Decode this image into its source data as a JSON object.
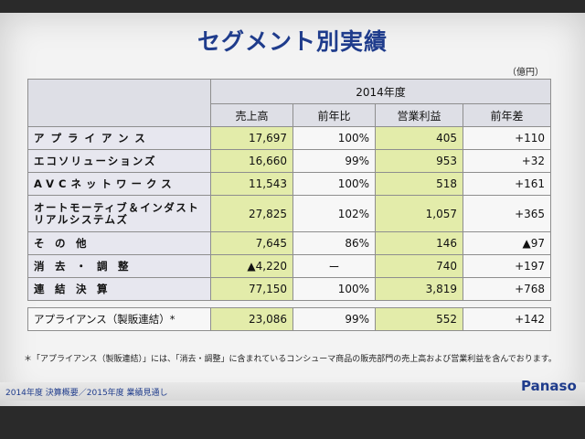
{
  "title": "セグメント別実績",
  "unit": "（億円）",
  "year_header": "2014年度",
  "columns": [
    "売上高",
    "前年比",
    "営業利益",
    "前年差"
  ],
  "rows": [
    {
      "label": "アプライアンス",
      "sales": "17,697",
      "yoy": "100%",
      "op": "405",
      "diff": "+110"
    },
    {
      "label": "エコソリューションズ",
      "sales": "16,660",
      "yoy": "99%",
      "op": "953",
      "diff": "+32"
    },
    {
      "label": "AVCネットワークス",
      "sales": "11,543",
      "yoy": "100%",
      "op": "518",
      "diff": "+161"
    },
    {
      "label": "オートモーティブ＆インダストリアルシステムズ",
      "sales": "27,825",
      "yoy": "102%",
      "op": "1,057",
      "diff": "+365"
    },
    {
      "label": "そ　の　他",
      "sales": "7,645",
      "yoy": "86%",
      "op": "146",
      "diff": "▲97"
    },
    {
      "label": "消　去　・　調　整",
      "sales": "▲4,220",
      "yoy": "ー",
      "op": "740",
      "diff": "+197"
    },
    {
      "label": "連　結　決　算",
      "sales": "77,150",
      "yoy": "100%",
      "op": "3,819",
      "diff": "+768"
    }
  ],
  "extra_row": {
    "label": "アプライアンス（製販連結）*",
    "sales": "23,086",
    "yoy": "99%",
    "op": "552",
    "diff": "+142"
  },
  "footnote": "＊「アプライアンス（製販連結）」には、「消去・調整」に含まれているコンシューマ商品の販売部門の売上高および営業利益を含んでおります。",
  "bottom_left": "2014年度 決算概要／2015年度 業績見通し",
  "brand": "Panaso"
}
